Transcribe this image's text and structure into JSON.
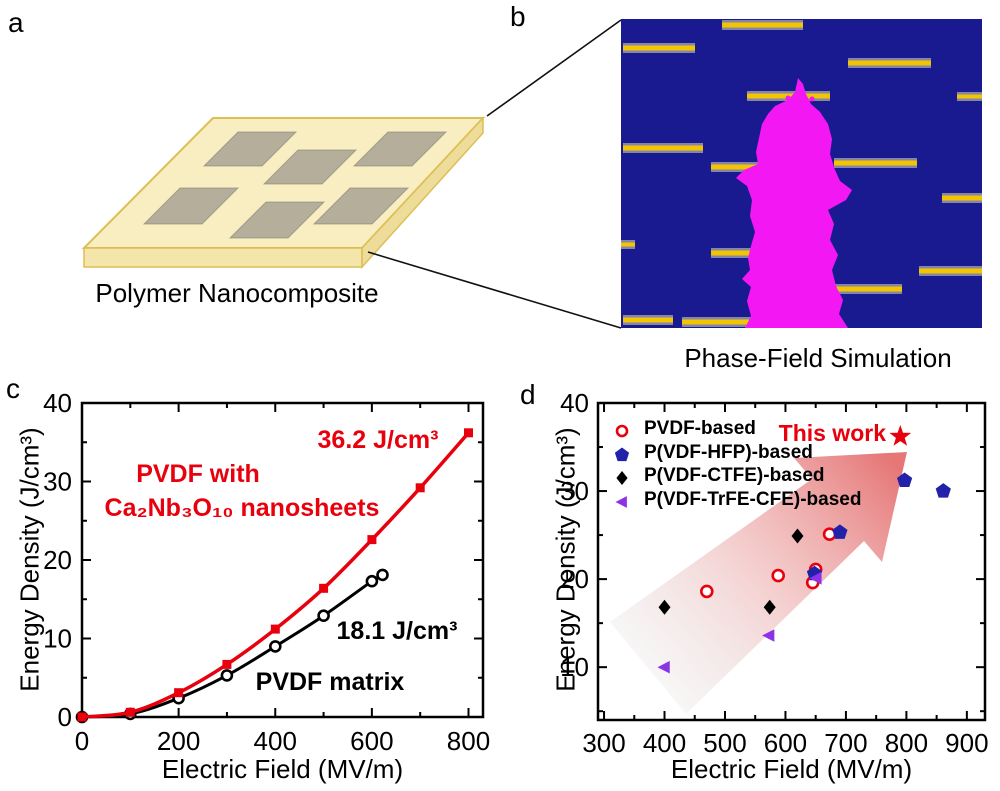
{
  "figure": {
    "panels": {
      "a": {
        "letter": "a",
        "caption": "Polymer Nanocomposite"
      },
      "b": {
        "letter": "b",
        "caption": "Phase-Field Simulation"
      },
      "c": {
        "letter": "c"
      },
      "d": {
        "letter": "d"
      }
    }
  },
  "colors": {
    "red": "#e8000d",
    "black": "#000000",
    "hfp_blue": "#2121aa",
    "violet": "#8c33e6",
    "sim_background": "#1a1a90",
    "sim_filler_yellow": "#f2c500",
    "sim_filler_edge": "#8585a8",
    "sim_breakdown_magenta": "#f318f3",
    "slab_yellow": "#f8eec2",
    "slab_front": "#f4e5ab",
    "slab_side": "#eedd9a",
    "slab_edge": "#dcbf55",
    "nanosheet_gray": "rgba(165,160,146,0.82)"
  },
  "chart_data": [
    {
      "id": "c",
      "type": "line",
      "title": "",
      "xlabel": "Electric Field (MV/m)",
      "ylabel": "Energy Density (J/cm³)",
      "xlim": [
        0,
        830
      ],
      "ylim": [
        0,
        40
      ],
      "xticks": [
        0,
        200,
        400,
        600,
        800
      ],
      "xminors": [
        100,
        300,
        500,
        700
      ],
      "yticks": [
        0,
        10,
        20,
        30,
        40
      ],
      "yminors": [
        5,
        15,
        25,
        35
      ],
      "grid": false,
      "series": [
        {
          "name": "PVDF with Ca₂Nb₃O₁₀ nanosheets",
          "marker": "square",
          "color": "#e8000d",
          "x": [
            0,
            100,
            200,
            300,
            400,
            500,
            600,
            700,
            800
          ],
          "y": [
            0,
            0.6,
            3.1,
            6.7,
            11.2,
            16.4,
            22.6,
            29.2,
            36.2
          ]
        },
        {
          "name": "PVDF matrix",
          "marker": "open-circle",
          "color": "#000000",
          "x": [
            0,
            100,
            200,
            300,
            400,
            500,
            600,
            622
          ],
          "y": [
            0,
            0.4,
            2.4,
            5.3,
            9.0,
            12.9,
            17.3,
            18.1
          ]
        }
      ],
      "annotations": [
        {
          "text": "36.2 J/cm³",
          "color": "#e8000d"
        },
        {
          "text": "PVDF with",
          "color": "#e8000d"
        },
        {
          "text": "Ca₂Nb₃O₁₀ nanosheets",
          "color": "#e8000d"
        },
        {
          "text": "18.1 J/cm³",
          "color": "#000000"
        },
        {
          "text": "PVDF matrix",
          "color": "#000000"
        }
      ]
    },
    {
      "id": "d",
      "type": "scatter",
      "title": "",
      "xlabel": "Electric Field (MV/m)",
      "ylabel": "Energy Density (J/cm³)",
      "xlim": [
        290,
        930
      ],
      "ylim": [
        4,
        40
      ],
      "xticks": [
        300,
        400,
        500,
        600,
        700,
        800,
        900
      ],
      "xminors": [
        350,
        450,
        550,
        650,
        750,
        850
      ],
      "yticks": [
        10,
        20,
        30,
        40
      ],
      "yminors": [
        5,
        15,
        25,
        35
      ],
      "grid": false,
      "legend_position": "top-left",
      "series": [
        {
          "name": "PVDF-based",
          "marker": "open-circle",
          "color": "#e8000d",
          "points": [
            [
              470,
              18.6
            ],
            [
              588,
              20.4
            ],
            [
              645,
              19.6
            ],
            [
              650,
              21.1
            ],
            [
              673,
              25.1
            ]
          ]
        },
        {
          "name": "P(VDF-HFP)-based",
          "marker": "pentagon",
          "color": "#2121aa",
          "points": [
            [
              648,
              20.6
            ],
            [
              690,
              25.3
            ],
            [
              797,
              31.2
            ],
            [
              861,
              30.0
            ]
          ]
        },
        {
          "name": "P(VDF-CTFE)-based",
          "marker": "diamond",
          "color": "#000000",
          "points": [
            [
              400,
              16.8
            ],
            [
              574,
              16.8
            ],
            [
              620,
              24.9
            ]
          ]
        },
        {
          "name": "P(VDF-TrFE-CFE)-based",
          "marker": "triangle-left",
          "color": "#8c33e6",
          "points": [
            [
              400,
              10.0
            ],
            [
              573,
              13.6
            ],
            [
              651,
              20.1
            ]
          ]
        }
      ],
      "this_work": {
        "label": "This work",
        "marker": "star",
        "color": "#e8000d",
        "point": [
          790,
          36.2
        ]
      }
    }
  ]
}
